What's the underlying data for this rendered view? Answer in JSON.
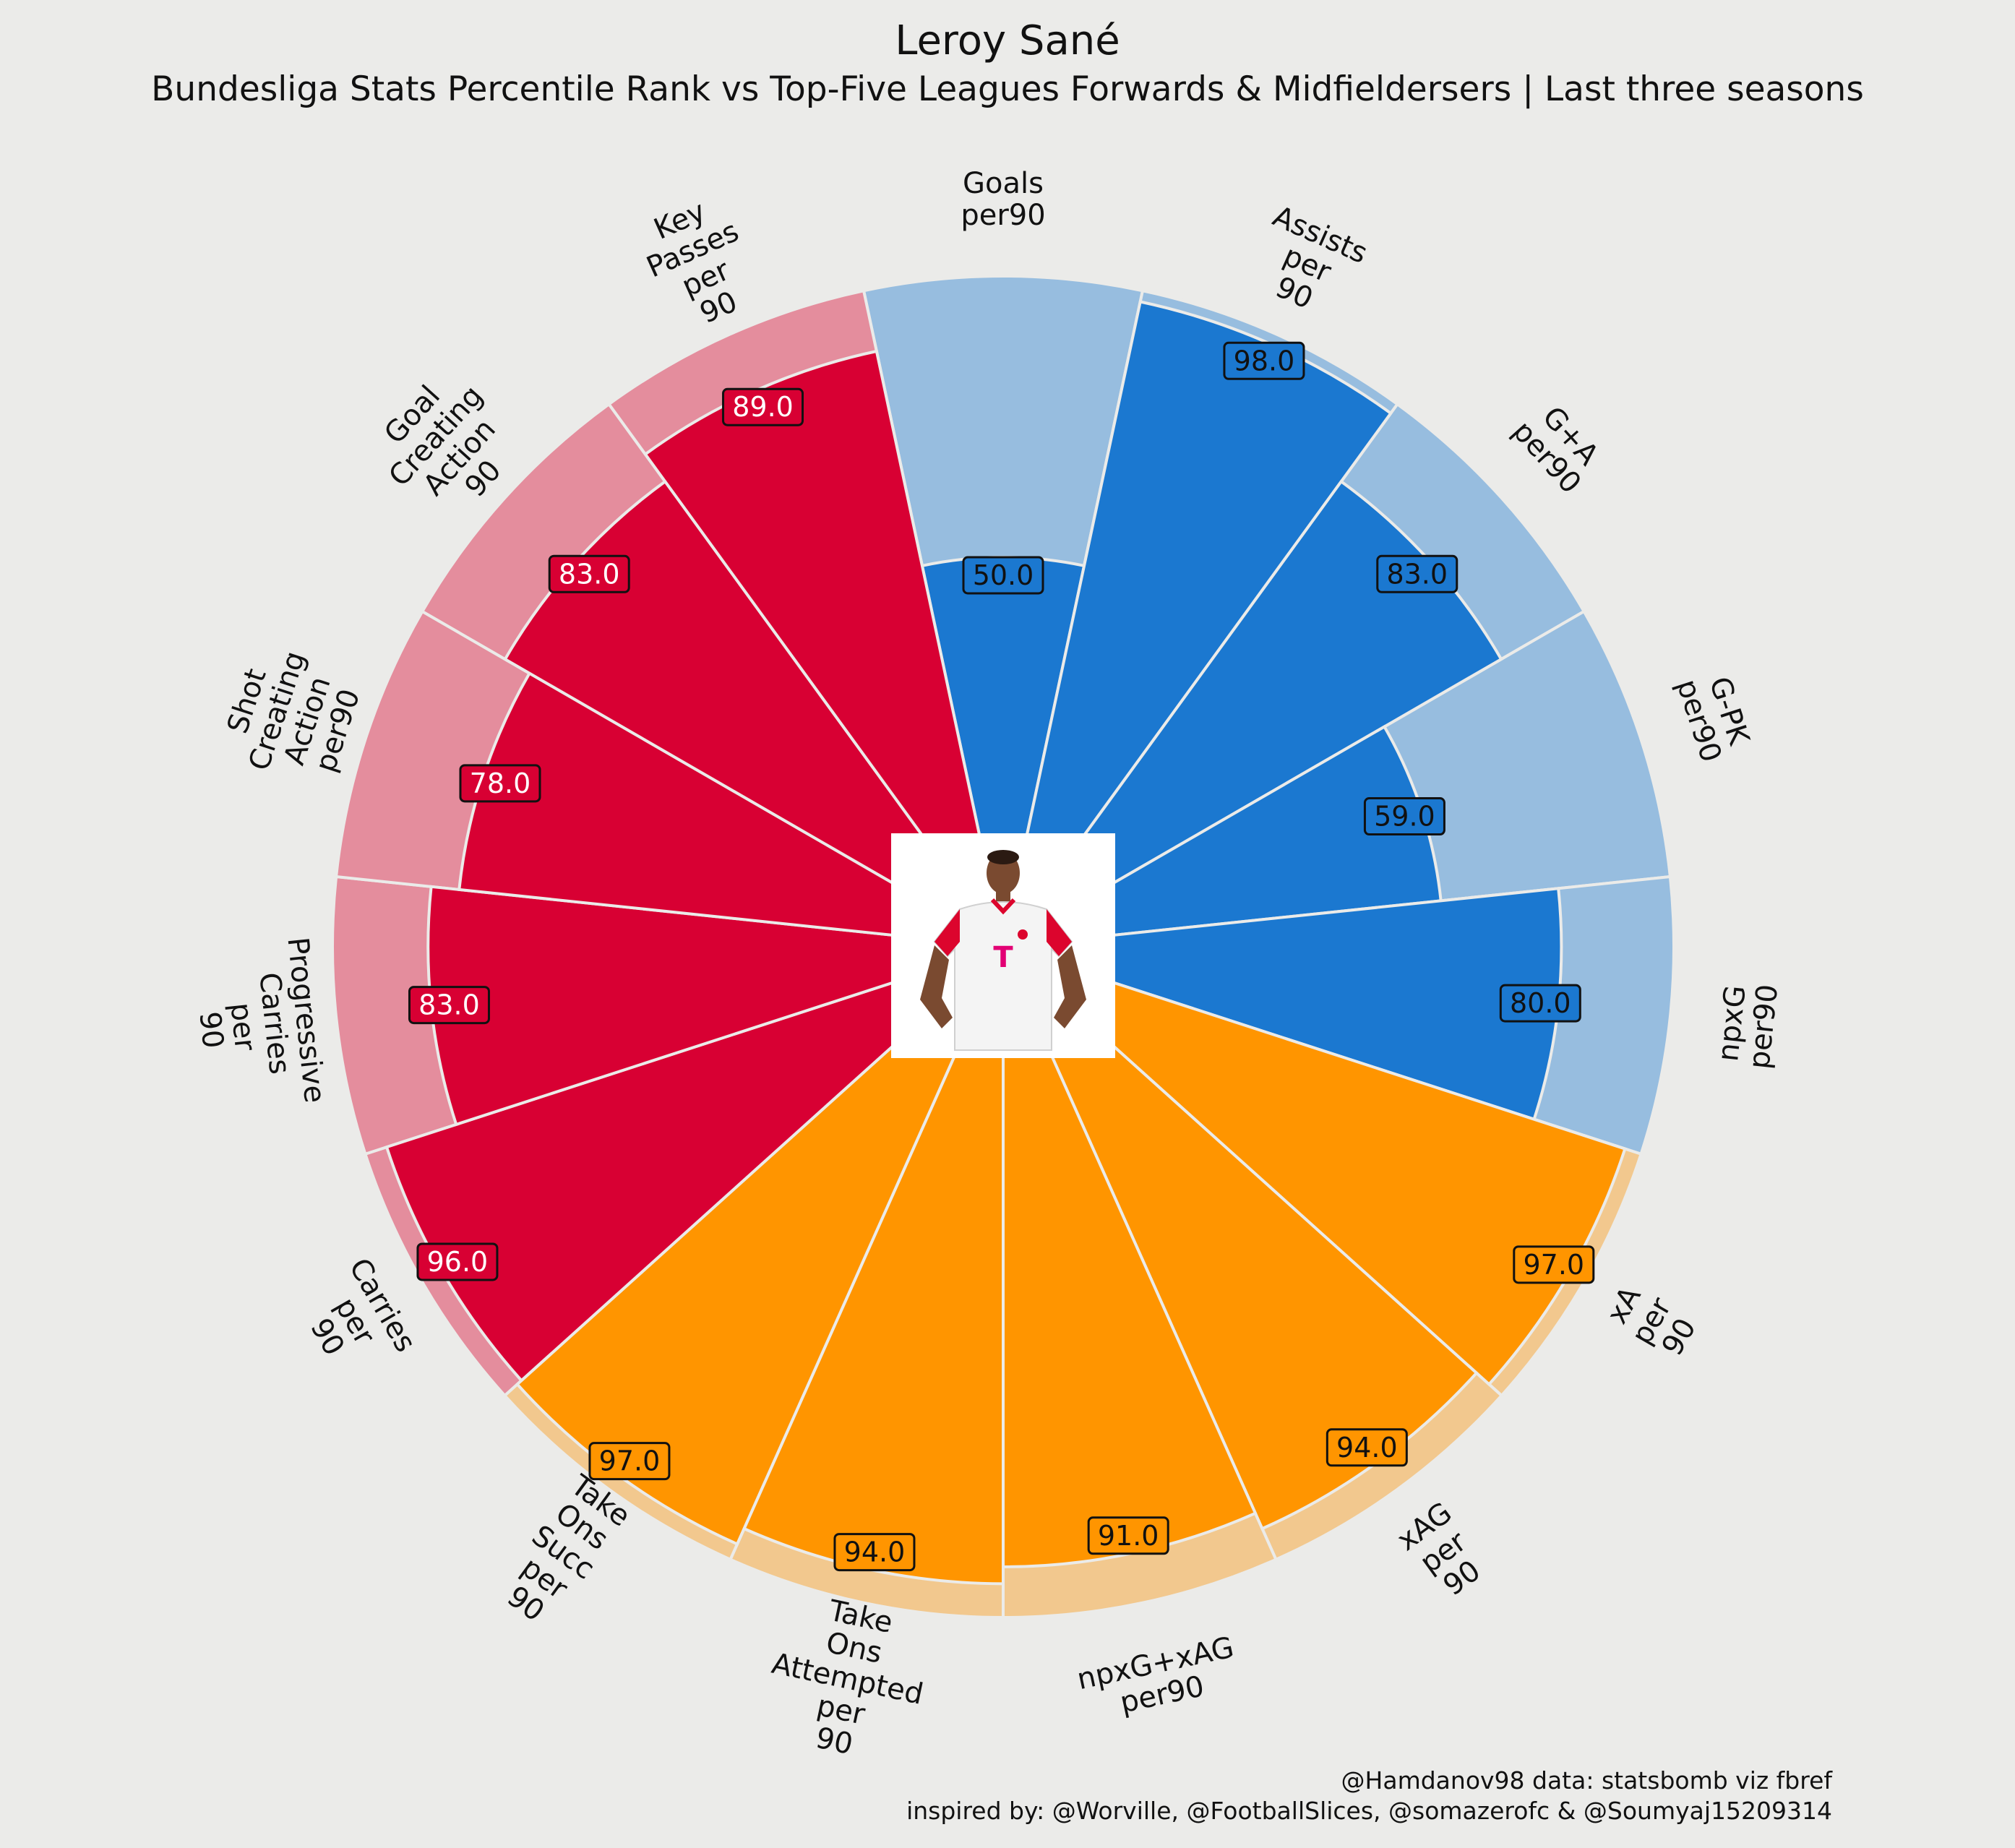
{
  "title": "Leroy Sané",
  "subtitle": "Bundesliga Stats Percentile Rank vs Top-Five Leagues Forwards & Midfieldersers | Last three seasons",
  "credits": {
    "line1": "@Hamdanov98 data: statsbomb viz fbref",
    "line2": "inspired by: @Worville, @FootballSlices, @somazerofc & @Soumyaj15209314"
  },
  "colors": {
    "background": "#ebebe9",
    "attacking": "#1b78d0",
    "attacking_bg": "#97bddf",
    "possession": "#ff9500",
    "possession_bg": "#f2c88e",
    "creation": "#d80033",
    "creation_bg": "#e48d9d",
    "separator": "#ebebe9"
  },
  "player_image": "player-photo",
  "chart_data": {
    "type": "polar-bar",
    "rmax": 100,
    "slices": [
      {
        "label": "Goals\nper90",
        "value": 50,
        "group": "attacking"
      },
      {
        "label": "Assists\nper\n90",
        "value": 98,
        "group": "attacking"
      },
      {
        "label": "G+A\nper90",
        "value": 83,
        "group": "attacking"
      },
      {
        "label": "G-PK\nper90",
        "value": 59,
        "group": "attacking"
      },
      {
        "label": "npxG\nper90",
        "value": 80,
        "group": "attacking"
      },
      {
        "label": "xA\nper\n90",
        "value": 97,
        "group": "possession"
      },
      {
        "label": "xAG\nper\n90",
        "value": 94,
        "group": "possession"
      },
      {
        "label": "npxG+xAG\nper90",
        "value": 91,
        "group": "possession"
      },
      {
        "label": "Take\nOns\nAttempted\nper\n90",
        "value": 94,
        "group": "possession"
      },
      {
        "label": "Take\nOns\nSucc\nper\n90",
        "value": 97,
        "group": "possession"
      },
      {
        "label": "Carries\nper\n90",
        "value": 96,
        "group": "creation"
      },
      {
        "label": "Progressive\nCarries\nper\n90",
        "value": 83,
        "group": "creation"
      },
      {
        "label": "Shot\nCreating\nAction\nper90",
        "value": 78,
        "group": "creation"
      },
      {
        "label": "Goal\nCreating\nAction\n90",
        "value": 83,
        "group": "creation"
      },
      {
        "label": "Key\nPasses\nper\n90",
        "value": 89,
        "group": "creation"
      }
    ]
  }
}
